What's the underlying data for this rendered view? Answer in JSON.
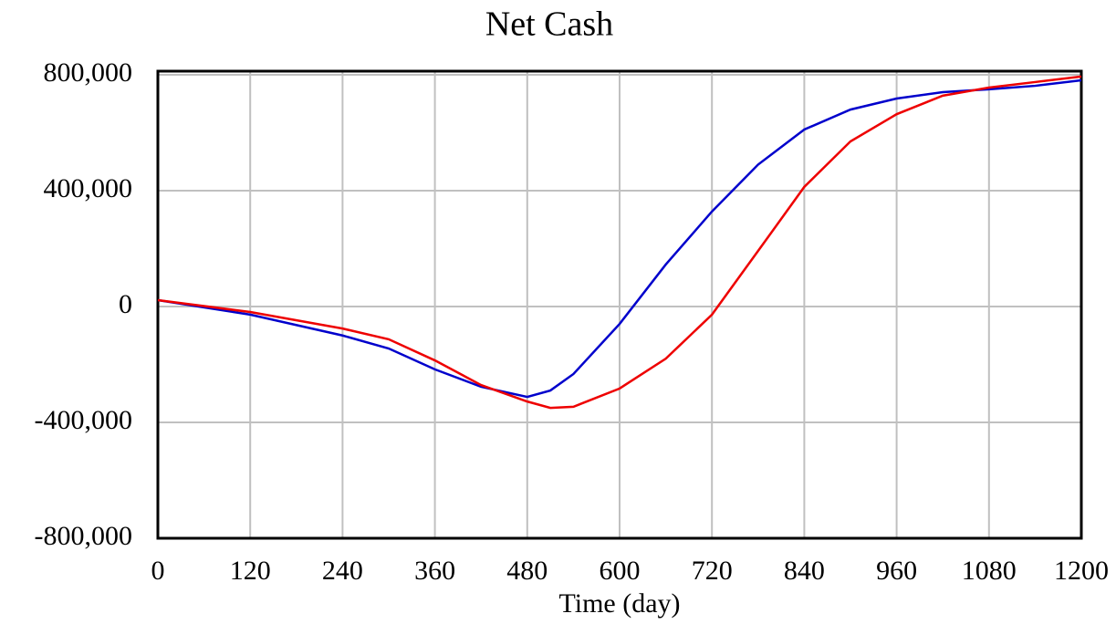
{
  "chart_data": {
    "type": "line",
    "title": "Net Cash",
    "x_label": "Time (day)",
    "x": [
      0,
      120,
      240,
      300,
      360,
      420,
      480,
      510,
      540,
      600,
      660,
      720,
      780,
      840,
      900,
      960,
      1020,
      1080,
      1140,
      1200
    ],
    "series": [
      {
        "color": "#0000cc",
        "values": [
          22000,
          -28000,
          -100000,
          -145000,
          -217000,
          -277000,
          -312000,
          -290000,
          -233000,
          -60000,
          145000,
          328000,
          490000,
          611000,
          680000,
          718000,
          740000,
          750000,
          762000,
          781000
        ]
      },
      {
        "color": "#ee0000",
        "values": [
          22000,
          -19000,
          -76000,
          -113000,
          -186000,
          -271000,
          -328000,
          -350000,
          -346000,
          -283000,
          -180000,
          -28000,
          192000,
          413000,
          570000,
          664000,
          728000,
          756000,
          775000,
          794000
        ]
      }
    ],
    "xlim": [
      0,
      1200
    ],
    "xticks": [
      0,
      120,
      240,
      360,
      480,
      600,
      720,
      840,
      960,
      1080,
      1200
    ],
    "ylim": [
      -800000,
      800000
    ],
    "yticks": [
      {
        "value": -800000,
        "label": "-800,000"
      },
      {
        "value": -400000,
        "label": "-400,000"
      },
      0,
      {
        "value": 400000,
        "label": "400,000"
      },
      {
        "value": 800000,
        "label": "800,000"
      }
    ],
    "grid": true
  }
}
